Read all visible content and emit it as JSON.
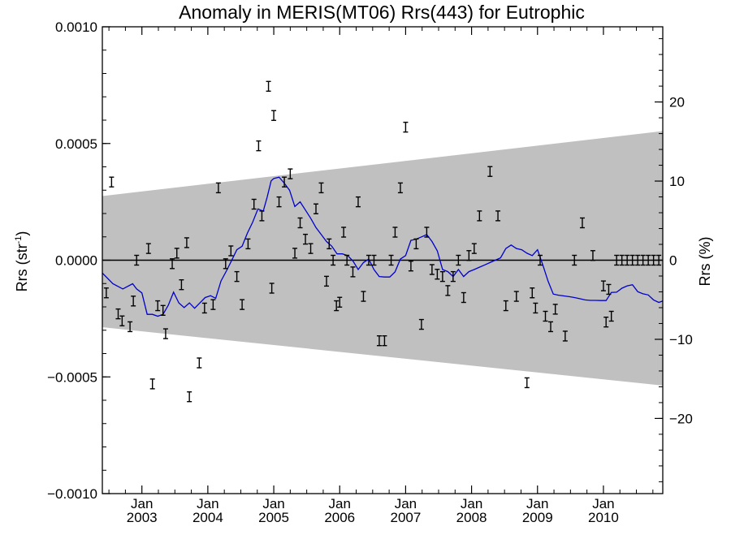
{
  "chart_data": {
    "type": "scatter",
    "title": "Anomaly in MERIS(MT06) Rrs(443) for Eutrophic",
    "ylabel_left": "Rrs (str",
    "ylabel_left_sup": "-1",
    "ylabel_left_close": ")",
    "ylabel_right": "Rrs (%)",
    "x_range": [
      2002.4,
      2010.9
    ],
    "y_range": [
      -0.001,
      0.001
    ],
    "y2_range": [
      -29.5,
      29.5
    ],
    "y_ticks": [
      {
        "v": 0.001,
        "label": "0.0010"
      },
      {
        "v": 0.0005,
        "label": "0.0005"
      },
      {
        "v": 0.0,
        "label": "0.0000"
      },
      {
        "v": -0.0005,
        "label": "−0.0005"
      },
      {
        "v": -0.001,
        "label": "−0.0010"
      }
    ],
    "y2_ticks": [
      {
        "v": 20,
        "label": "20"
      },
      {
        "v": 10,
        "label": "10"
      },
      {
        "v": 0,
        "label": "0"
      },
      {
        "v": -10,
        "label": "−10"
      },
      {
        "v": -20,
        "label": "−20"
      }
    ],
    "x_ticks": [
      {
        "v": 2003.0,
        "month": "Jan",
        "year": "2003"
      },
      {
        "v": 2004.0,
        "month": "Jan",
        "year": "2004"
      },
      {
        "v": 2005.0,
        "month": "Jan",
        "year": "2005"
      },
      {
        "v": 2006.0,
        "month": "Jan",
        "year": "2006"
      },
      {
        "v": 2007.0,
        "month": "Jan",
        "year": "2007"
      },
      {
        "v": 2008.0,
        "month": "Jan",
        "year": "2008"
      },
      {
        "v": 2009.0,
        "month": "Jan",
        "year": "2009"
      },
      {
        "v": 2010.0,
        "month": "Jan",
        "year": "2010"
      }
    ],
    "band": {
      "color": "#c0c0c0",
      "start": {
        "x": 2002.4,
        "upper": 0.000275,
        "lower": -0.000287
      },
      "end": {
        "x": 2010.9,
        "upper": 0.000553,
        "lower": -0.000537
      }
    },
    "zero_line": 0.0,
    "smooth_series": {
      "color": "#0000cc",
      "x": [
        2002.4,
        2002.56,
        2002.71,
        2002.86,
        2002.92,
        2003.0,
        2003.08,
        2003.16,
        2003.24,
        2003.32,
        2003.4,
        2003.48,
        2003.56,
        2003.64,
        2003.72,
        2003.8,
        2003.88,
        2003.96,
        2004.04,
        2004.12,
        2004.2,
        2004.28,
        2004.36,
        2004.44,
        2004.52,
        2004.6,
        2004.68,
        2004.76,
        2004.84,
        2004.9,
        2004.96,
        2005.0,
        2005.08,
        2005.16,
        2005.24,
        2005.32,
        2005.4,
        2005.48,
        2005.56,
        2005.64,
        2005.72,
        2005.8,
        2005.88,
        2005.96,
        2006.04,
        2006.12,
        2006.2,
        2006.28,
        2006.36,
        2006.44,
        2006.52,
        2006.6,
        2006.68,
        2006.76,
        2006.84,
        2006.92,
        2007.0,
        2007.08,
        2007.16,
        2007.24,
        2007.32,
        2007.4,
        2007.48,
        2007.56,
        2007.64,
        2007.72,
        2007.8,
        2007.88,
        2007.96,
        2008.04,
        2008.12,
        2008.2,
        2008.28,
        2008.36,
        2008.44,
        2008.52,
        2008.6,
        2008.68,
        2008.76,
        2008.84,
        2008.92,
        2009.0,
        2009.08,
        2009.16,
        2009.24,
        2009.32,
        2009.4,
        2009.48,
        2009.56,
        2009.64,
        2009.72,
        2009.8,
        2009.88,
        2009.96,
        2010.04,
        2010.12,
        2010.2,
        2010.28,
        2010.36,
        2010.44,
        2010.52,
        2010.6,
        2010.68,
        2010.76,
        2010.84,
        2010.9
      ],
      "y": [
        -5.5e-05,
        -0.000101,
        -0.000123,
        -0.000101,
        -0.000123,
        -0.00014,
        -0.000232,
        -0.000232,
        -0.00024,
        -0.000232,
        -0.000193,
        -0.000137,
        -0.000183,
        -0.000203,
        -0.000183,
        -0.000206,
        -0.000183,
        -0.00016,
        -0.000152,
        -0.000163,
        -8.9e-05,
        -4.7e-05,
        -2e-06,
        4.5e-05,
        6e-05,
        0.000116,
        0.000163,
        0.00022,
        0.00021,
        0.00027,
        0.00034,
        0.00035,
        0.000356,
        0.00033,
        0.0003,
        0.00023,
        0.00025,
        0.000215,
        0.00018,
        0.00014,
        0.00011,
        8e-05,
        6e-05,
        2.7e-05,
        2.7e-05,
        2e-05,
        -3e-06,
        -4e-05,
        -1e-05,
        5e-06,
        -4e-05,
        -7e-05,
        -7.2e-05,
        -7.2e-05,
        -5e-05,
        5e-06,
        2e-05,
        8.5e-05,
        9e-05,
        0.0001,
        0.00011,
        8e-05,
        4e-05,
        -4e-05,
        -4.9e-05,
        -7e-05,
        -4e-05,
        -7e-05,
        -4.9e-05,
        -4e-05,
        -3e-05,
        -2e-05,
        -1e-05,
        0.0,
        1e-05,
        5e-05,
        6.5e-05,
        5e-05,
        4.5e-05,
        3e-05,
        2e-05,
        4.5e-05,
        -2e-05,
        -9e-05,
        -0.000145,
        -0.00015,
        -0.000153,
        -0.000156,
        -0.00016,
        -0.000165,
        -0.00017,
        -0.000172,
        -0.000172,
        -0.000173,
        -0.000173,
        -0.000138,
        -0.000137,
        -0.00012,
        -0.00011,
        -0.000105,
        -0.000135,
        -0.000144,
        -0.000149,
        -0.00017,
        -0.000181,
        -0.000175
      ]
    },
    "points": {
      "color": "#000000",
      "x": [
        2002.54,
        2002.46,
        2002.64,
        2002.7,
        2002.82,
        2002.87,
        2002.92,
        2003.1,
        2003.16,
        2003.24,
        2003.32,
        2003.36,
        2003.46,
        2003.53,
        2003.6,
        2003.68,
        2003.72,
        2003.87,
        2003.95,
        2004.08,
        2004.16,
        2004.27,
        2004.35,
        2004.44,
        2004.52,
        2004.61,
        2004.7,
        2004.77,
        2004.82,
        2004.92,
        2004.97,
        2005.0,
        2005.08,
        2005.16,
        2005.25,
        2005.32,
        2005.4,
        2005.48,
        2005.56,
        2005.64,
        2005.72,
        2005.8,
        2005.84,
        2005.9,
        2005.95,
        2006.0,
        2006.06,
        2006.11,
        2006.2,
        2006.28,
        2006.36,
        2006.44,
        2006.52,
        2006.6,
        2006.68,
        2006.78,
        2006.84,
        2006.92,
        2007.0,
        2007.08,
        2007.16,
        2007.24,
        2007.32,
        2007.4,
        2007.48,
        2007.56,
        2007.64,
        2007.72,
        2007.8,
        2007.88,
        2007.96,
        2008.04,
        2008.12,
        2008.28,
        2008.4,
        2008.52,
        2008.68,
        2008.84,
        2008.92,
        2008.97,
        2009.04,
        2009.12,
        2009.2,
        2009.27,
        2009.42,
        2009.56,
        2009.68,
        2009.84,
        2010.0,
        2010.04,
        2010.08,
        2010.12,
        2010.2,
        2010.28,
        2010.36,
        2010.44,
        2010.52,
        2010.6,
        2010.68,
        2010.76,
        2010.84
      ],
      "y": [
        0.000335,
        -0.00014,
        -0.00023,
        -0.00026,
        -0.000285,
        -0.000175,
        0.0,
        5e-05,
        -0.00053,
        -0.000195,
        -0.000215,
        -0.000315,
        -1.5e-05,
        3e-05,
        -0.000105,
        7.5e-05,
        -0.000585,
        -0.00044,
        -0.000205,
        -0.00019,
        0.00031,
        -1.5e-05,
        4e-05,
        -7e-05,
        -0.00019,
        7e-05,
        0.00024,
        0.00049,
        0.00019,
        0.000745,
        -0.00012,
        0.00062,
        0.00025,
        0.000335,
        0.00037,
        3e-05,
        0.00016,
        9e-05,
        5e-05,
        0.00022,
        0.00031,
        -9e-05,
        7e-05,
        0.0,
        -0.000195,
        -0.00018,
        0.00012,
        0.0,
        -5e-05,
        0.00025,
        -0.000155,
        0.0,
        0.0,
        -0.000345,
        -0.000345,
        0.0,
        0.00012,
        0.00031,
        0.00057,
        -2.5e-05,
        7e-05,
        -0.000275,
        0.00012,
        -4e-05,
        -6e-05,
        -7e-05,
        -0.00013,
        -7e-05,
        0.0,
        -0.00016,
        2e-05,
        5e-05,
        0.00019,
        0.00038,
        0.00019,
        -0.000195,
        -0.000155,
        -0.000525,
        -0.00014,
        -0.000205,
        0.0,
        -0.00024,
        -0.000285,
        -0.00021,
        -0.000325,
        0.0,
        0.00016,
        2e-05,
        -0.00011,
        -0.000265,
        -0.000125,
        -0.00024,
        0.0,
        0.0,
        0.0,
        0.0,
        0.0,
        0.0,
        0.0,
        0.0,
        0.0
      ]
    }
  }
}
